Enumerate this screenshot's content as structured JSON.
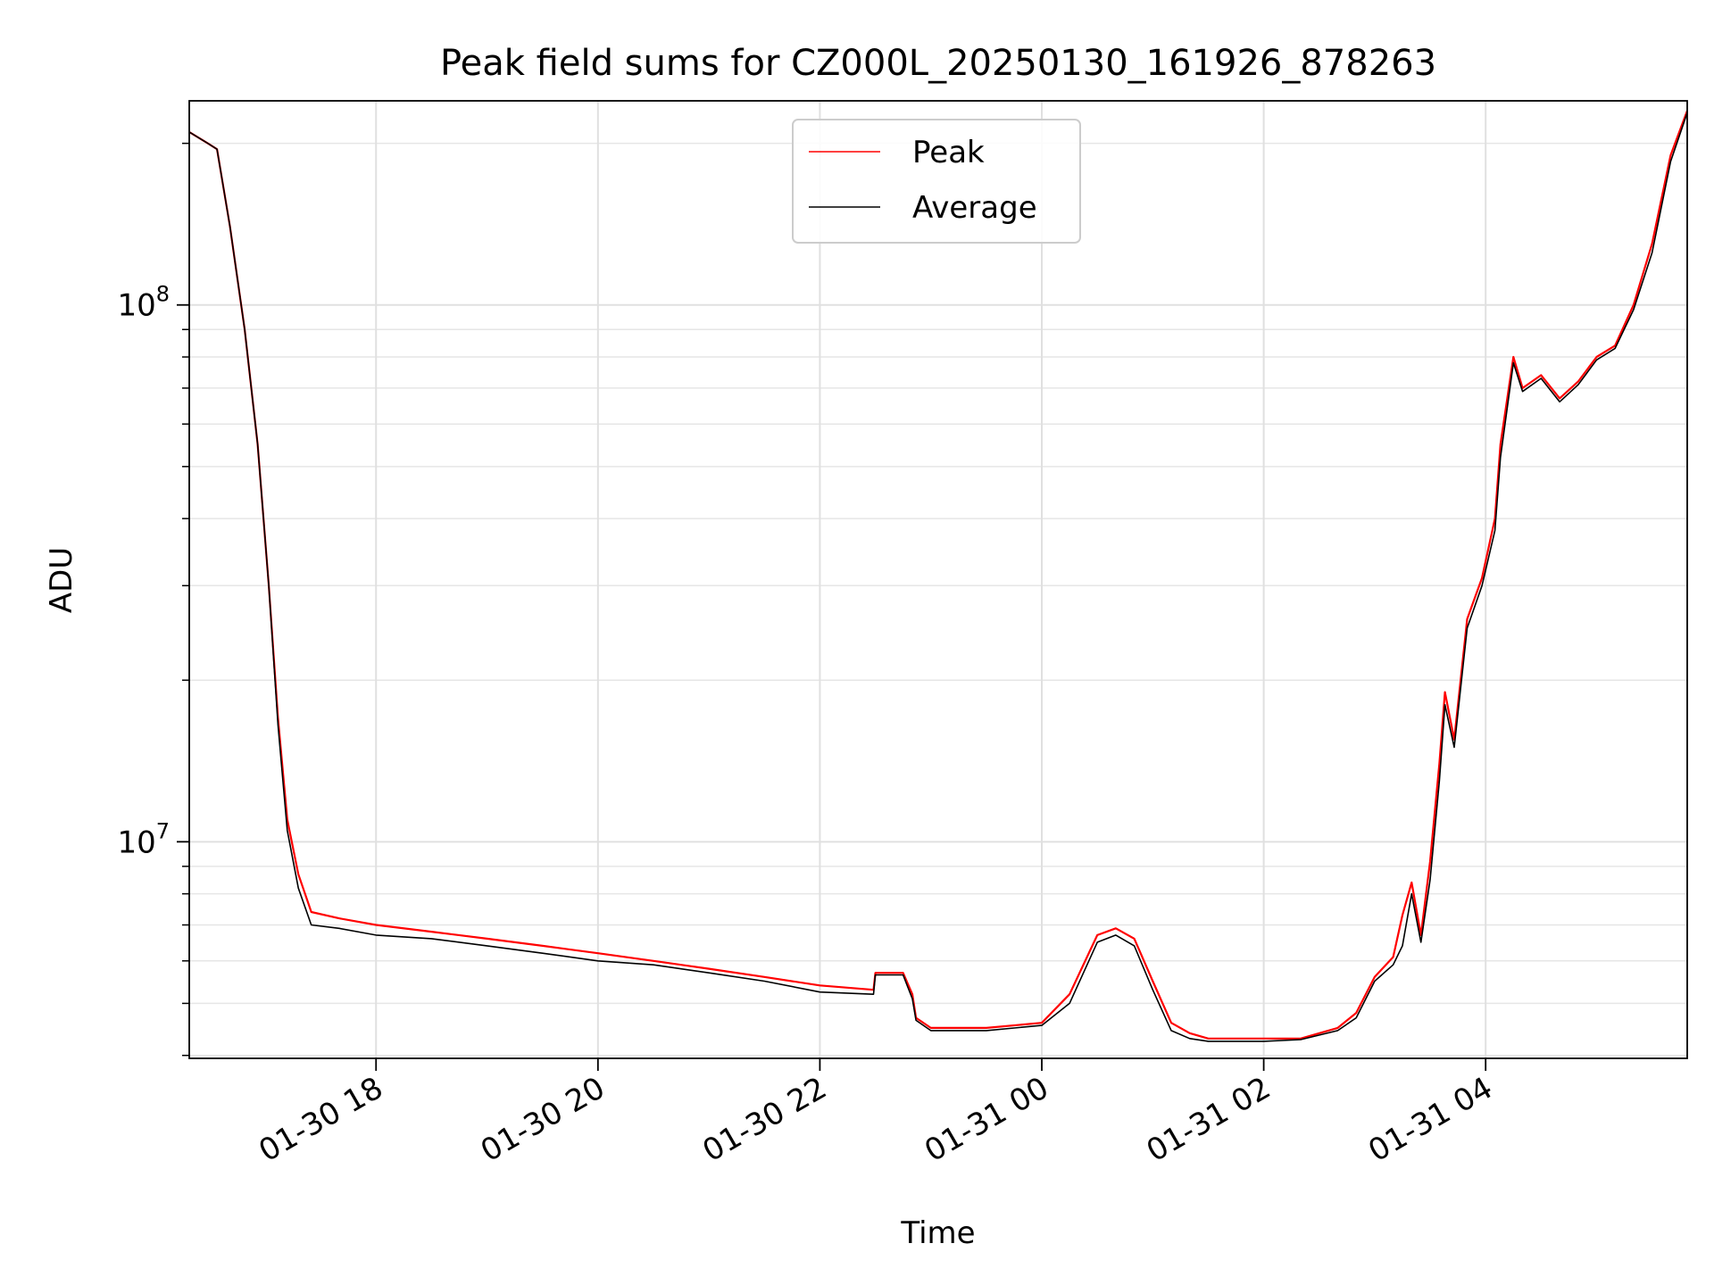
{
  "chart_data": {
    "type": "line",
    "title": "Peak field sums for CZ000L_20250130_161926_878263",
    "xlabel": "Time",
    "ylabel": "ADU",
    "yscale": "log",
    "grid": true,
    "legend_position": "top-center",
    "xlim": [
      "2025-01-30T16:19",
      "2025-01-31T05:49"
    ],
    "ylim": [
      3950000,
      240000000
    ],
    "x_ticks": [
      {
        "value": "2025-01-30T18:00",
        "label": "01-30 18"
      },
      {
        "value": "2025-01-30T20:00",
        "label": "01-30 20"
      },
      {
        "value": "2025-01-30T22:00",
        "label": "01-30 22"
      },
      {
        "value": "2025-01-31T00:00",
        "label": "01-31 00"
      },
      {
        "value": "2025-01-31T02:00",
        "label": "01-31 02"
      },
      {
        "value": "2025-01-31T04:00",
        "label": "01-31 04"
      }
    ],
    "y_ticks": [
      {
        "value": 10000000,
        "base": "10",
        "exp": "7"
      },
      {
        "value": 100000000,
        "base": "10",
        "exp": "8"
      }
    ],
    "series": [
      {
        "name": "Peak",
        "color": "#ff0000",
        "x": [
          "2025-01-30T16:19",
          "2025-01-30T16:29",
          "2025-01-30T16:34",
          "2025-01-30T16:41",
          "2025-01-30T16:49",
          "2025-01-30T16:56",
          "2025-01-30T17:02",
          "2025-01-30T17:07",
          "2025-01-30T17:12",
          "2025-01-30T17:18",
          "2025-01-30T17:25",
          "2025-01-30T17:40",
          "2025-01-30T18:00",
          "2025-01-30T18:30",
          "2025-01-30T19:00",
          "2025-01-30T19:30",
          "2025-01-30T20:00",
          "2025-01-30T20:30",
          "2025-01-30T21:00",
          "2025-01-30T21:30",
          "2025-01-30T22:00",
          "2025-01-30T22:29",
          "2025-01-30T22:30",
          "2025-01-30T22:45",
          "2025-01-30T22:50",
          "2025-01-30T22:52",
          "2025-01-30T23:00",
          "2025-01-30T23:30",
          "2025-01-31T00:00",
          "2025-01-31T00:15",
          "2025-01-31T00:30",
          "2025-01-31T00:40",
          "2025-01-31T00:50",
          "2025-01-31T01:00",
          "2025-01-31T01:10",
          "2025-01-31T01:20",
          "2025-01-31T01:30",
          "2025-01-31T01:45",
          "2025-01-31T02:00",
          "2025-01-31T02:20",
          "2025-01-31T02:40",
          "2025-01-31T02:50",
          "2025-01-31T03:00",
          "2025-01-31T03:10",
          "2025-01-31T03:15",
          "2025-01-31T03:20",
          "2025-01-31T03:25",
          "2025-01-31T03:30",
          "2025-01-31T03:35",
          "2025-01-31T03:38",
          "2025-01-31T03:43",
          "2025-01-31T03:50",
          "2025-01-31T03:58",
          "2025-01-31T04:05",
          "2025-01-31T04:08",
          "2025-01-31T04:15",
          "2025-01-31T04:20",
          "2025-01-31T04:30",
          "2025-01-31T04:40",
          "2025-01-31T04:50",
          "2025-01-31T05:00",
          "2025-01-31T05:10",
          "2025-01-31T05:20",
          "2025-01-31T05:30",
          "2025-01-31T05:40",
          "2025-01-31T05:49"
        ],
        "values": [
          210000000,
          200000000,
          195000000,
          140000000,
          90000000,
          55000000,
          30000000,
          17000000,
          11000000,
          8700000,
          7400000,
          7200000,
          7000000,
          6800000,
          6600000,
          6400000,
          6200000,
          6000000,
          5800000,
          5600000,
          5400000,
          5300000,
          5700000,
          5700000,
          5200000,
          4700000,
          4500000,
          4500000,
          4600000,
          5200000,
          6700000,
          6900000,
          6600000,
          5500000,
          4600000,
          4400000,
          4300000,
          4300000,
          4300000,
          4300000,
          4500000,
          4800000,
          5600000,
          6100000,
          7300000,
          8400000,
          6700000,
          9200000,
          14000000,
          19000000,
          15500000,
          26000000,
          31000000,
          40000000,
          55000000,
          80000000,
          70000000,
          74000000,
          67000000,
          72000000,
          80000000,
          84000000,
          100000000,
          130000000,
          190000000,
          230000000
        ]
      },
      {
        "name": "Average",
        "color": "#000000",
        "x": [
          "2025-01-30T16:19",
          "2025-01-30T16:29",
          "2025-01-30T16:34",
          "2025-01-30T16:41",
          "2025-01-30T16:49",
          "2025-01-30T16:56",
          "2025-01-30T17:02",
          "2025-01-30T17:07",
          "2025-01-30T17:12",
          "2025-01-30T17:18",
          "2025-01-30T17:25",
          "2025-01-30T17:40",
          "2025-01-30T18:00",
          "2025-01-30T18:30",
          "2025-01-30T19:00",
          "2025-01-30T19:30",
          "2025-01-30T20:00",
          "2025-01-30T20:30",
          "2025-01-30T21:00",
          "2025-01-30T21:30",
          "2025-01-30T22:00",
          "2025-01-30T22:29",
          "2025-01-30T22:30",
          "2025-01-30T22:45",
          "2025-01-30T22:50",
          "2025-01-30T22:52",
          "2025-01-30T23:00",
          "2025-01-30T23:30",
          "2025-01-31T00:00",
          "2025-01-31T00:15",
          "2025-01-31T00:30",
          "2025-01-31T00:40",
          "2025-01-31T00:50",
          "2025-01-31T01:00",
          "2025-01-31T01:10",
          "2025-01-31T01:20",
          "2025-01-31T01:30",
          "2025-01-31T01:45",
          "2025-01-31T02:00",
          "2025-01-31T02:20",
          "2025-01-31T02:40",
          "2025-01-31T02:50",
          "2025-01-31T03:00",
          "2025-01-31T03:10",
          "2025-01-31T03:15",
          "2025-01-31T03:20",
          "2025-01-31T03:25",
          "2025-01-31T03:30",
          "2025-01-31T03:35",
          "2025-01-31T03:38",
          "2025-01-31T03:43",
          "2025-01-31T03:50",
          "2025-01-31T03:58",
          "2025-01-31T04:05",
          "2025-01-31T04:08",
          "2025-01-31T04:15",
          "2025-01-31T04:20",
          "2025-01-31T04:30",
          "2025-01-31T04:40",
          "2025-01-31T04:50",
          "2025-01-31T05:00",
          "2025-01-31T05:10",
          "2025-01-31T05:20",
          "2025-01-31T05:30",
          "2025-01-31T05:40",
          "2025-01-31T05:49"
        ],
        "values": [
          210000000,
          200000000,
          195000000,
          140000000,
          90000000,
          55000000,
          30000000,
          16500000,
          10500000,
          8200000,
          7000000,
          6900000,
          6700000,
          6600000,
          6400000,
          6200000,
          6000000,
          5900000,
          5700000,
          5500000,
          5250000,
          5200000,
          5650000,
          5650000,
          5100000,
          4650000,
          4450000,
          4450000,
          4550000,
          5000000,
          6500000,
          6700000,
          6400000,
          5300000,
          4450000,
          4300000,
          4250000,
          4250000,
          4250000,
          4280000,
          4450000,
          4700000,
          5500000,
          5900000,
          6400000,
          8000000,
          6500000,
          8500000,
          13000000,
          18000000,
          15000000,
          25000000,
          30000000,
          38000000,
          52000000,
          78000000,
          69000000,
          73000000,
          66000000,
          71000000,
          79000000,
          83000000,
          98000000,
          125000000,
          185000000,
          228000000
        ]
      }
    ]
  }
}
